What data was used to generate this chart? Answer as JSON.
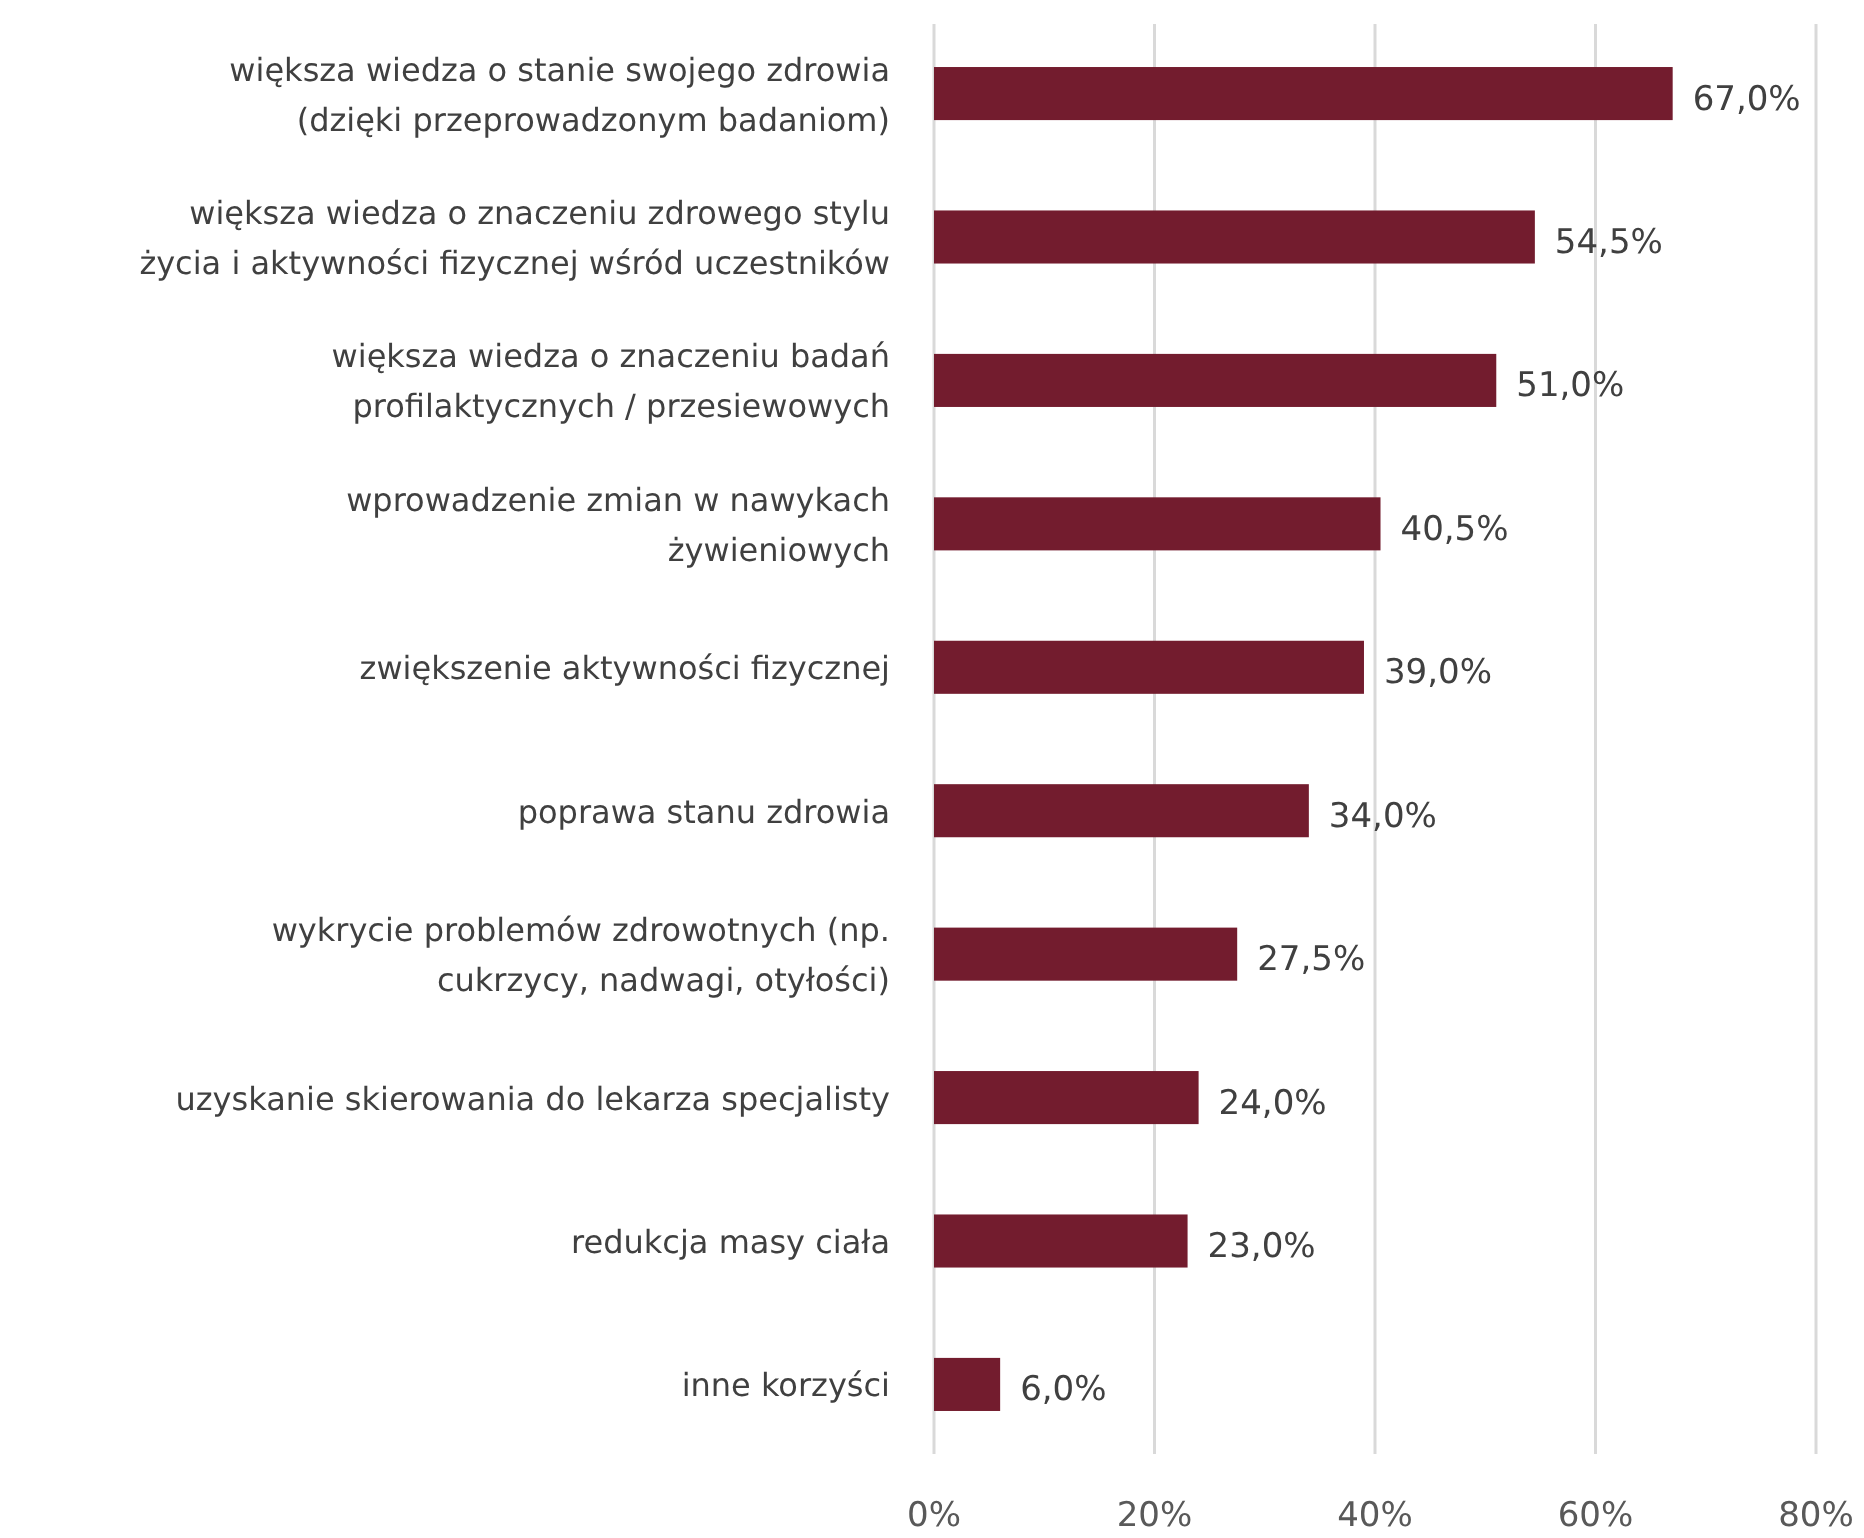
{
  "chart_data": {
    "type": "bar",
    "orientation": "horizontal",
    "categories": [
      "większa wiedza o stanie swojego zdrowia\n(dzięki przeprowadzonym badaniom)",
      "większa wiedza o znaczeniu zdrowego stylu\nżycia i aktywności fizycznej wśród uczestników",
      "większa wiedza o znaczeniu badań\nprofilaktycznych / przesiewowych",
      "wprowadzenie zmian w nawykach\nżywieniowych",
      "zwiększenie aktywności fizycznej",
      "poprawa stanu zdrowia",
      "wykrycie problemów zdrowotnych (np.\ncukrzycy, nadwagi, otyłości)",
      "uzyskanie skierowania do lekarza specjalisty",
      "redukcja masy ciała",
      "inne korzyści"
    ],
    "values": [
      67.0,
      54.5,
      51.0,
      40.5,
      39.0,
      34.0,
      27.5,
      24.0,
      23.0,
      6.0
    ],
    "value_labels": [
      "67,0%",
      "54,5%",
      "51,0%",
      "40,5%",
      "39,0%",
      "34,0%",
      "27,5%",
      "24,0%",
      "23,0%",
      "6,0%"
    ],
    "color": "#731c2e",
    "xlim": [
      0,
      80
    ],
    "xticks": [
      {
        "value": 0,
        "label": "0%"
      },
      {
        "value": 20,
        "label": "20%"
      },
      {
        "value": 40,
        "label": "40%"
      },
      {
        "value": 60,
        "label": "60%"
      },
      {
        "value": 80,
        "label": "80%"
      }
    ],
    "grid": "x"
  }
}
